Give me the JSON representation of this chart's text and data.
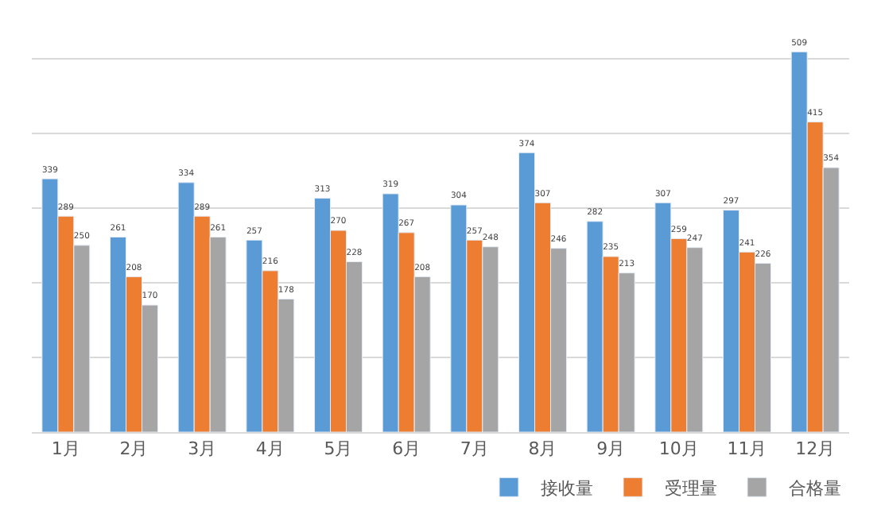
{
  "chart_data": {
    "type": "bar",
    "categories": [
      "1月",
      "2月",
      "3月",
      "4月",
      "5月",
      "6月",
      "7月",
      "8月",
      "9月",
      "10月",
      "11月",
      "12月"
    ],
    "series": [
      {
        "name": "接收量",
        "color": "#5b9bd5",
        "values": [
          339,
          261,
          334,
          257,
          313,
          319,
          304,
          374,
          282,
          307,
          297,
          509
        ]
      },
      {
        "name": "受理量",
        "color": "#ed7d31",
        "values": [
          289,
          208,
          289,
          216,
          270,
          267,
          257,
          307,
          235,
          259,
          241,
          415
        ]
      },
      {
        "name": "合格量",
        "color": "#a5a5a5",
        "values": [
          250,
          170,
          261,
          178,
          228,
          208,
          248,
          246,
          213,
          247,
          226,
          354
        ]
      }
    ],
    "grid": "y",
    "tick_labels": "x",
    "data_labels": true,
    "legend": "bottom right"
  }
}
